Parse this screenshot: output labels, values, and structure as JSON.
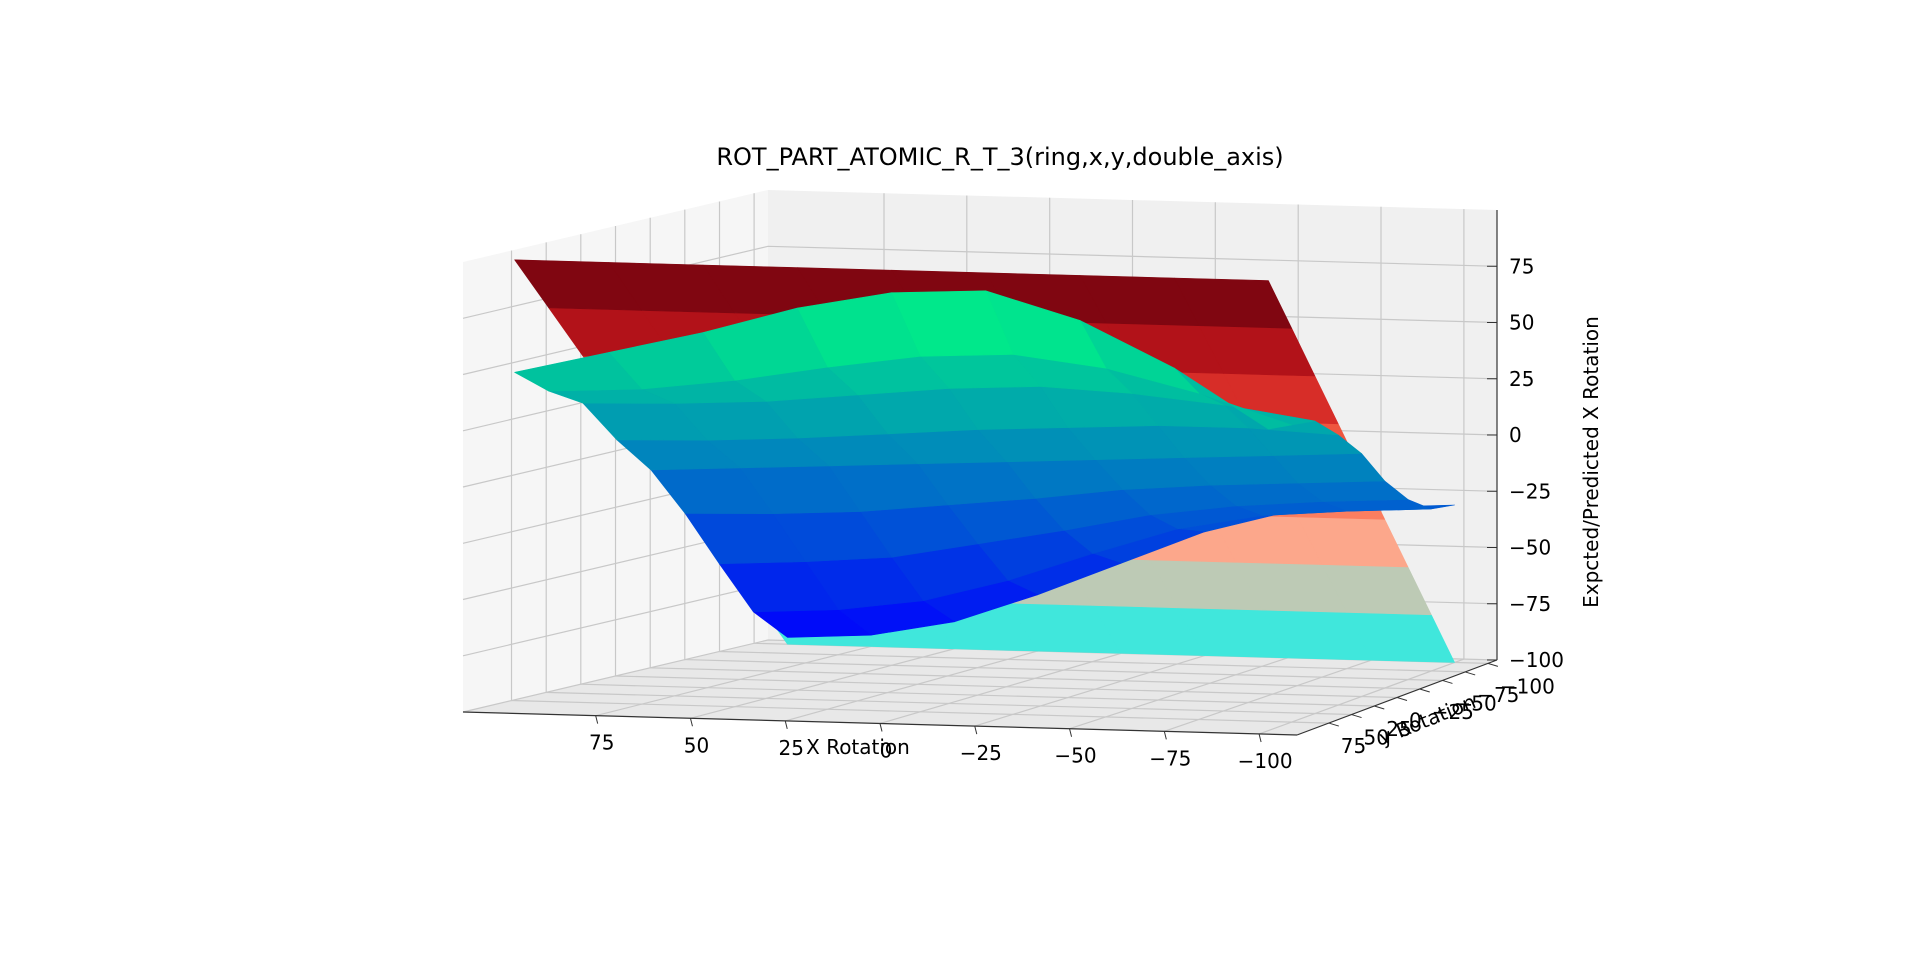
{
  "chart_data": {
    "type": "surface3d",
    "title": "ROT_PART_ATOMIC_R_T_3(ring,x,y,double_axis)",
    "xlabel": "X Rotation",
    "ylabel": "y Rotation",
    "zlabel": "Expcted/Predicted X Rotation",
    "xlim": [
      -110,
      110
    ],
    "ylim": [
      -110,
      110
    ],
    "zlim": [
      -100,
      100
    ],
    "x_ticks": [
      "75",
      "50",
      "25",
      "0",
      "−25",
      "−50",
      "−75",
      "−100"
    ],
    "y_ticks": [
      "75",
      "50",
      "25",
      "0",
      "−25",
      "−50",
      "−75",
      "−100"
    ],
    "z_ticks": [
      "75",
      "50",
      "25",
      "0",
      "−25",
      "−50",
      "−75",
      "−100"
    ],
    "grid": true,
    "series": [
      {
        "colormap": "Reds",
        "surface": "expected",
        "x": [
          -100,
          -75,
          -50,
          -25,
          0,
          25,
          50,
          75,
          100
        ],
        "y": [
          -100,
          -75,
          -50,
          -25,
          0,
          25,
          50,
          75,
          100
        ],
        "z": [
          [
            -100,
            -100,
            -100,
            -100,
            -100,
            -100,
            -100,
            -100,
            -100
          ],
          [
            -75,
            -75,
            -75,
            -75,
            -75,
            -75,
            -75,
            -75,
            -75
          ],
          [
            -50,
            -50,
            -50,
            -50,
            -50,
            -50,
            -50,
            -50,
            -50
          ],
          [
            -25,
            -25,
            -25,
            -25,
            -25,
            -25,
            -25,
            -25,
            -25
          ],
          [
            0,
            0,
            0,
            0,
            0,
            0,
            0,
            0,
            0
          ],
          [
            25,
            25,
            25,
            25,
            25,
            25,
            25,
            25,
            25
          ],
          [
            50,
            50,
            50,
            50,
            50,
            50,
            50,
            50,
            50
          ],
          [
            75,
            75,
            75,
            75,
            75,
            75,
            75,
            75,
            75
          ],
          [
            100,
            100,
            100,
            100,
            100,
            100,
            100,
            100,
            100
          ]
        ]
      },
      {
        "colormap": "winter",
        "surface": "predicted",
        "x": [
          -100,
          -75,
          -50,
          -25,
          0,
          25,
          50,
          75,
          100
        ],
        "y": [
          -100,
          -75,
          -50,
          -25,
          0,
          25,
          50,
          75,
          100
        ],
        "z": [
          [
            -30,
            -32,
            -35,
            -45,
            -60,
            -75,
            -88,
            -95,
            -97
          ],
          [
            -28,
            -30,
            -33,
            -40,
            -52,
            -65,
            -75,
            -80,
            -82
          ],
          [
            -20,
            -22,
            -25,
            -30,
            -38,
            -45,
            -52,
            -55,
            -57
          ],
          [
            -8,
            -10,
            -12,
            -15,
            -20,
            -24,
            -28,
            -30,
            -31
          ],
          [
            8,
            6,
            4,
            2,
            0,
            -2,
            -4,
            -6,
            -8
          ],
          [
            20,
            22,
            22,
            20,
            18,
            15,
            12,
            10,
            9
          ],
          [
            30,
            36,
            40,
            42,
            40,
            36,
            32,
            30,
            29
          ],
          [
            32,
            45,
            55,
            60,
            58,
            52,
            45,
            40,
            38
          ],
          [
            34,
            60,
            80,
            92,
            90,
            82,
            70,
            60,
            50
          ]
        ]
      }
    ]
  }
}
